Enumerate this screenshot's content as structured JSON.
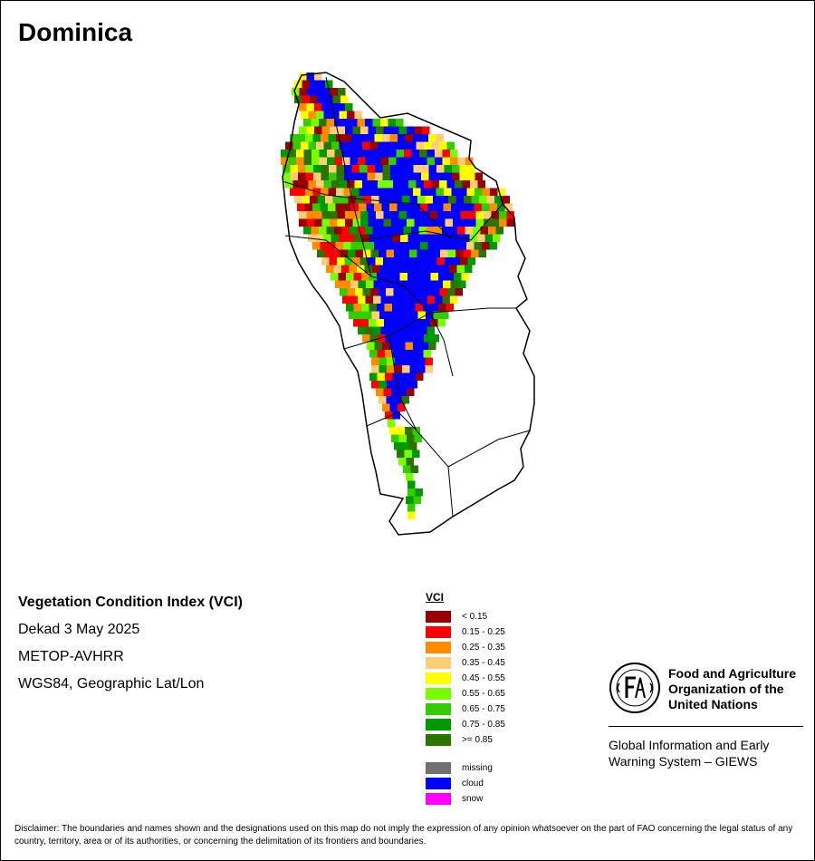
{
  "title": "Dominica",
  "info": {
    "index_name": "Vegetation Condition Index (VCI)",
    "dekad": "Dekad 3 May 2025",
    "sensor": "METOP-AVHRR",
    "projection": "WGS84, Geographic Lat/Lon"
  },
  "legend": {
    "title": "VCI",
    "classes": [
      {
        "label": "< 0.15",
        "color": "#990000"
      },
      {
        "label": "0.15 - 0.25",
        "color": "#ff0000"
      },
      {
        "label": "0.25 - 0.35",
        "color": "#ff8c00"
      },
      {
        "label": "0.35 - 0.45",
        "color": "#ffcc77"
      },
      {
        "label": "0.45 - 0.55",
        "color": "#ffff00"
      },
      {
        "label": "0.55 - 0.65",
        "color": "#77ff00"
      },
      {
        "label": "0.65 - 0.75",
        "color": "#33cc00"
      },
      {
        "label": ">= 0.85",
        "color": "#2d7300"
      }
    ],
    "class_0_75": {
      "label": "0.75 - 0.85",
      "color": "#009900"
    },
    "special": [
      {
        "label": "missing",
        "color": "#707070"
      },
      {
        "label": "cloud",
        "color": "#0000ff"
      },
      {
        "label": "snow",
        "color": "#ff00ff"
      }
    ]
  },
  "fao": {
    "name_line1": "Food and Agriculture",
    "name_line2": "Organization of the",
    "name_line3": "United Nations",
    "giews_line1": "Global Information and Early",
    "giews_line2": "Warning System – GIEWS"
  },
  "disclaimer": "Disclaimer: The boundaries and names shown and the designations used on this map do not imply the expression of any opinion whatsoever on the part of FAO concerning the legal status of any country, territory, area or of its authorities, or concerning the delimitation of its frontiers and boundaries."
}
